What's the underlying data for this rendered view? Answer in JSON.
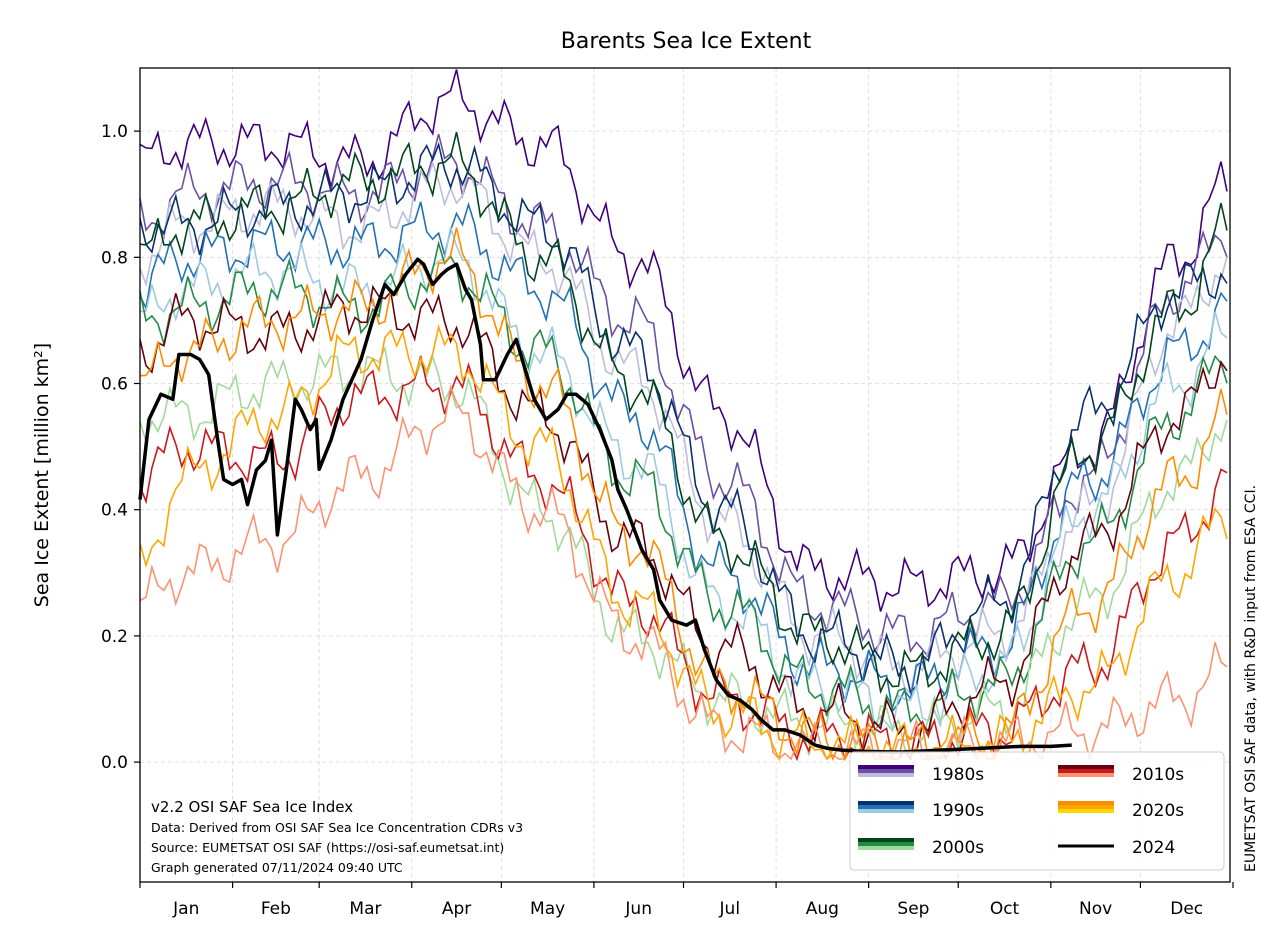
{
  "chart_data": {
    "type": "line",
    "title": "Barents Sea Ice Extent",
    "ylabel": "Sea Ice Extent [million km²]",
    "xlabel": "",
    "ylim": [
      -0.19,
      1.1
    ],
    "xlim_day_of_year": [
      1,
      366
    ],
    "yticks": [
      "0.0",
      "0.2",
      "0.4",
      "0.6",
      "0.8",
      "1.0"
    ],
    "ytick_values": [
      0,
      0.2,
      0.4,
      0.6,
      0.8,
      1.0
    ],
    "month_labels": [
      "Jan",
      "Feb",
      "Mar",
      "Apr",
      "May",
      "Jun",
      "Jul",
      "Aug",
      "Sep",
      "Oct",
      "Nov",
      "Dec"
    ],
    "month_start_days": [
      1,
      32,
      61,
      92,
      122,
      153,
      183,
      214,
      245,
      275,
      306,
      336,
      367
    ],
    "grid": true,
    "legend_position": "bottom-right",
    "decade_x_days": [
      1,
      15,
      46,
      74,
      105,
      135,
      166,
      196,
      227,
      258,
      288,
      319,
      349,
      366
    ],
    "decades": [
      {
        "name": "1980s",
        "colors": [
          "#3f007d",
          "#6a51a3",
          "#bcbddc"
        ],
        "curves": [
          [
            0.95,
            0.98,
            0.98,
            0.95,
            1.05,
            0.98,
            0.8,
            0.55,
            0.3,
            0.28,
            0.3,
            0.5,
            0.8,
            0.92
          ],
          [
            0.85,
            0.9,
            0.92,
            0.9,
            0.95,
            0.85,
            0.7,
            0.45,
            0.25,
            0.2,
            0.25,
            0.45,
            0.75,
            0.85
          ],
          [
            0.8,
            0.85,
            0.88,
            0.85,
            0.92,
            0.8,
            0.62,
            0.38,
            0.2,
            0.15,
            0.2,
            0.4,
            0.7,
            0.8
          ]
        ]
      },
      {
        "name": "1990s",
        "colors": [
          "#08306b",
          "#2171b5",
          "#9ecae1"
        ],
        "curves": [
          [
            0.85,
            0.85,
            0.88,
            0.9,
            0.95,
            0.85,
            0.65,
            0.4,
            0.2,
            0.15,
            0.25,
            0.55,
            0.75,
            0.78
          ],
          [
            0.75,
            0.8,
            0.82,
            0.82,
            0.85,
            0.75,
            0.55,
            0.3,
            0.15,
            0.12,
            0.18,
            0.45,
            0.65,
            0.72
          ],
          [
            0.7,
            0.75,
            0.78,
            0.75,
            0.8,
            0.65,
            0.48,
            0.25,
            0.12,
            0.08,
            0.15,
            0.4,
            0.6,
            0.68
          ]
        ]
      },
      {
        "name": "2000s",
        "colors": [
          "#00441b",
          "#238b45",
          "#a1d99b"
        ],
        "curves": [
          [
            0.8,
            0.85,
            0.88,
            0.92,
            0.95,
            0.8,
            0.6,
            0.35,
            0.2,
            0.14,
            0.2,
            0.5,
            0.72,
            0.85
          ],
          [
            0.7,
            0.72,
            0.75,
            0.72,
            0.78,
            0.65,
            0.45,
            0.25,
            0.12,
            0.08,
            0.12,
            0.35,
            0.55,
            0.65
          ],
          [
            0.55,
            0.55,
            0.6,
            0.62,
            0.6,
            0.4,
            0.2,
            0.1,
            0.06,
            0.05,
            0.08,
            0.25,
            0.45,
            0.55
          ]
        ]
      },
      {
        "name": "2010s",
        "colors": [
          "#67000d",
          "#cb181d",
          "#fc9272"
        ],
        "curves": [
          [
            0.65,
            0.7,
            0.68,
            0.72,
            0.7,
            0.55,
            0.35,
            0.18,
            0.08,
            0.05,
            0.12,
            0.35,
            0.55,
            0.65
          ],
          [
            0.45,
            0.5,
            0.48,
            0.58,
            0.6,
            0.45,
            0.25,
            0.1,
            0.04,
            0.03,
            0.05,
            0.15,
            0.35,
            0.45
          ],
          [
            0.25,
            0.3,
            0.35,
            0.45,
            0.55,
            0.4,
            0.2,
            0.05,
            0.02,
            0.02,
            0.03,
            0.05,
            0.1,
            0.15
          ]
        ]
      },
      {
        "name": "2020s",
        "colors": [
          "#ff8c00",
          "#ffa500",
          "#ffd700"
        ],
        "curves": [
          [
            0.6,
            0.65,
            0.7,
            0.72,
            0.8,
            0.6,
            0.35,
            0.12,
            0.04,
            0.02,
            0.04,
            0.25,
            0.45,
            0.55
          ],
          [
            0.3,
            0.45,
            0.55,
            0.65,
            0.65,
            0.5,
            0.25,
            0.08,
            0.03,
            0.02,
            0.03,
            0.12,
            0.3,
            0.4
          ]
        ]
      }
    ],
    "series_2024": {
      "name": "2024",
      "color": "#000000",
      "x": [
        1,
        4,
        8,
        12,
        14,
        18,
        21,
        24,
        27,
        29,
        32,
        35,
        37,
        40,
        43,
        45,
        47,
        50,
        53,
        55,
        58,
        60,
        61,
        65,
        69,
        75,
        79,
        83,
        86,
        90,
        94,
        96,
        99,
        102,
        104,
        107,
        110,
        112,
        115,
        116,
        120,
        124,
        127,
        130,
        133,
        137,
        141,
        144,
        147,
        151,
        155,
        159,
        161,
        164,
        169,
        173,
        175,
        179,
        184,
        187,
        190,
        194,
        198,
        202,
        206,
        209,
        213,
        217,
        222,
        227,
        231,
        236,
        243,
        256,
        269,
        283,
        296,
        306,
        313
      ],
      "y": [
        0.416,
        0.543,
        0.583,
        0.575,
        0.646,
        0.646,
        0.638,
        0.614,
        0.511,
        0.448,
        0.44,
        0.448,
        0.408,
        0.463,
        0.478,
        0.51,
        0.36,
        0.463,
        0.575,
        0.559,
        0.527,
        0.543,
        0.464,
        0.511,
        0.575,
        0.638,
        0.702,
        0.757,
        0.741,
        0.773,
        0.797,
        0.789,
        0.757,
        0.773,
        0.781,
        0.789,
        0.749,
        0.733,
        0.662,
        0.606,
        0.606,
        0.646,
        0.67,
        0.622,
        0.575,
        0.543,
        0.559,
        0.583,
        0.583,
        0.567,
        0.527,
        0.479,
        0.432,
        0.4,
        0.337,
        0.305,
        0.257,
        0.225,
        0.217,
        0.225,
        0.178,
        0.13,
        0.106,
        0.098,
        0.083,
        0.067,
        0.051,
        0.051,
        0.043,
        0.027,
        0.022,
        0.019,
        0.017,
        0.016,
        0.019,
        0.022,
        0.025,
        0.025,
        0.027
      ]
    }
  },
  "footer": {
    "line1": "v2.2 OSI SAF Sea Ice Index",
    "line2": "Data: Derived from OSI SAF Sea Ice Concentration CDRs v3",
    "line3": "Source: EUMETSAT OSI SAF (https://osi-saf.eumetsat.int)",
    "line4": "Graph generated 07/11/2024 09:40 UTC"
  },
  "side_note": "EUMETSAT OSI SAF data, with R&D input from ESA CCI."
}
